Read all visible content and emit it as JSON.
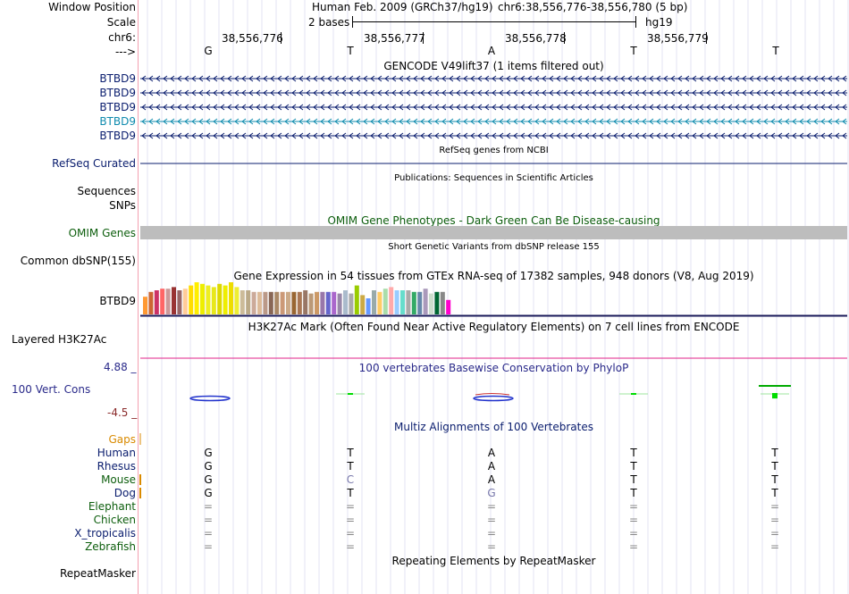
{
  "header": {
    "window_position_label": "Window Position",
    "scale_label": "Scale",
    "chr_label": "chr6:",
    "strand_label": "--->",
    "assembly_text": "Human Feb. 2009 (GRCh37/hg19)",
    "position_text": "chr6:38,556,776-38,556,780 (5 bp)",
    "scale_text": "2 bases",
    "db_text": "hg19",
    "coords": [
      "38,556,776",
      "38,556,777",
      "38,556,778",
      "38,556,779"
    ],
    "bases": [
      "G",
      "T",
      "A",
      "T",
      "T"
    ]
  },
  "gencode": {
    "title": "GENCODE V49lift37 (1 items filtered out)",
    "genes": [
      "BTBD9",
      "BTBD9",
      "BTBD9",
      "BTBD9",
      "BTBD9"
    ],
    "highlight_color": "#0f8bae",
    "gene_color": "#0a1d6e"
  },
  "refseq": {
    "title": "RefSeq genes from NCBI",
    "label": "RefSeq Curated"
  },
  "publications": {
    "title": "Publications: Sequences in Scientific Articles",
    "label_sequences": "Sequences",
    "label_snps": "SNPs"
  },
  "omim": {
    "title": "OMIM Gene Phenotypes - Dark Green Can Be Disease-causing",
    "label": "OMIM Genes",
    "color": "#0d5e0d"
  },
  "dbsnp": {
    "title": "Short Genetic Variants from dbSNP release 155",
    "label": "Common dbSNP(155)"
  },
  "gtex": {
    "title": "Gene Expression in 54 tissues from GTEx RNA-seq of 17382 samples, 948 donors (V8, Aug 2019)",
    "label": "BTBD9",
    "values": [
      0.55,
      0.7,
      0.75,
      0.8,
      0.8,
      0.85,
      0.75,
      0.8,
      0.9,
      1.0,
      0.95,
      0.9,
      0.85,
      0.95,
      0.9,
      1.0,
      0.85,
      0.75,
      0.75,
      0.7,
      0.7,
      0.7,
      0.7,
      0.7,
      0.7,
      0.7,
      0.7,
      0.7,
      0.75,
      0.65,
      0.7,
      0.7,
      0.7,
      0.7,
      0.65,
      0.75,
      0.65,
      0.9,
      0.6,
      0.5,
      0.75,
      0.7,
      0.8,
      0.85,
      0.75,
      0.75,
      0.75,
      0.7,
      0.7,
      0.8,
      0.65,
      0.7,
      0.7,
      0.45
    ],
    "colors": [
      "#ff9933",
      "#cc6633",
      "#cc3366",
      "#ff6666",
      "#cc9999",
      "#993333",
      "#996666",
      "#ffcc99",
      "#ffdd00",
      "#ffee00",
      "#eeee00",
      "#eeee22",
      "#e8e81a",
      "#ddd800",
      "#eeee00",
      "#eedd00",
      "#eeee33",
      "#ccbb99",
      "#bbaa88",
      "#ccaa99",
      "#ddbb99",
      "#bb9988",
      "#886655",
      "#aa8866",
      "#cc9977",
      "#ccaa88",
      "#996633",
      "#aa7755",
      "#997766",
      "#bb9977",
      "#cc9966",
      "#9977aa",
      "#6666cc",
      "#aa66cc",
      "#9988aa",
      "#aabbcc",
      "#aaaaaa",
      "#99cc00",
      "#ccaa44",
      "#6699ff",
      "#99aaaa",
      "#ffcc66",
      "#aaddaa",
      "#ffaaaa",
      "#99ccff",
      "#66ddcc",
      "#aaaaaa",
      "#33aa66",
      "#6688aa",
      "#aa99bb",
      "#ccddcc",
      "#006633",
      "#888888",
      "#ff00cc"
    ]
  },
  "h3k27ac": {
    "title": "H3K27Ac Mark (Often Found Near Active Regulatory Elements) on 7 cell lines from ENCODE",
    "label": "Layered H3K27Ac"
  },
  "phylop": {
    "title": "100 vertebrates Basewise Conservation by PhyloP",
    "label": "100 Vert. Cons",
    "max_text": "4.88 _",
    "min_text": "-4.5 _",
    "scores": [
      -0.5,
      0.2,
      -0.1,
      0.3,
      1.1
    ]
  },
  "multiz": {
    "title": "Multiz Alignments of 100 Vertebrates",
    "gaps_label": "Gaps",
    "species": [
      {
        "name": "Human",
        "bases": [
          "G",
          "T",
          "A",
          "T",
          "T"
        ],
        "color": "#0a1d6e"
      },
      {
        "name": "Rhesus",
        "bases": [
          "G",
          "T",
          "A",
          "T",
          "T"
        ],
        "color": "#0a1d6e"
      },
      {
        "name": "Mouse",
        "bases": [
          "G",
          "C",
          "A",
          "T",
          "T"
        ],
        "color": "#0d5e0d"
      },
      {
        "name": "Dog",
        "bases": [
          "G",
          "T",
          "G",
          "T",
          "T"
        ],
        "color": "#0a1d6e"
      },
      {
        "name": "Elephant",
        "bases": [
          "=",
          "=",
          "=",
          "=",
          "="
        ],
        "color": "#0d5e0d"
      },
      {
        "name": "Chicken",
        "bases": [
          "=",
          "=",
          "=",
          "=",
          "="
        ],
        "color": "#0d5e0d"
      },
      {
        "name": "X_tropicalis",
        "bases": [
          "=",
          "=",
          "=",
          "=",
          "="
        ],
        "color": "#0a1d6e"
      },
      {
        "name": "Zebrafish",
        "bases": [
          "=",
          "=",
          "=",
          "=",
          "="
        ],
        "color": "#0d5e0d"
      }
    ]
  },
  "repeatmasker": {
    "title": "Repeating Elements by RepeatMasker",
    "label": "RepeatMasker"
  }
}
